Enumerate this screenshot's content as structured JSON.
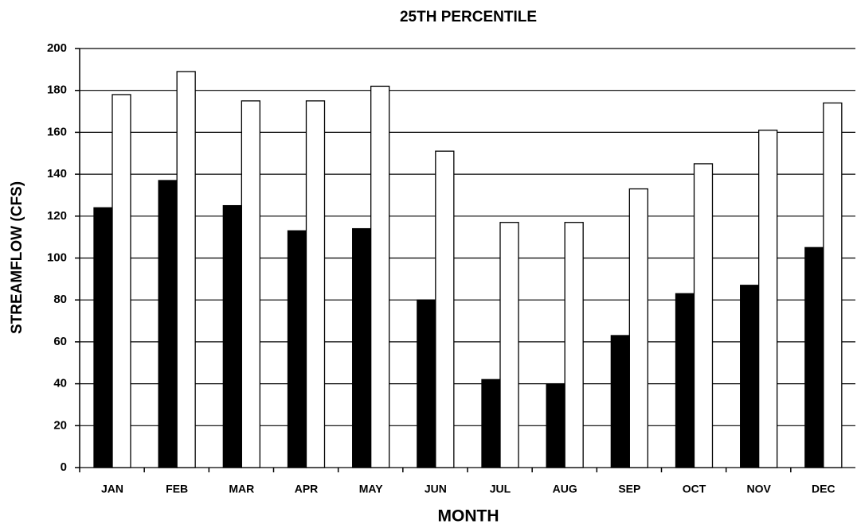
{
  "chart_data": {
    "type": "bar",
    "title": "25TH PERCENTILE",
    "x_label": "MONTH",
    "y_label": "STREAMFLOW (CFS)",
    "categories": [
      "JAN",
      "FEB",
      "MAR",
      "APR",
      "MAY",
      "JUN",
      "JUL",
      "AUG",
      "SEP",
      "OCT",
      "NOV",
      "DEC"
    ],
    "series": [
      {
        "color": "#000000",
        "values": [
          124,
          137,
          125,
          113,
          114,
          80,
          42,
          40,
          63,
          83,
          87,
          105
        ]
      },
      {
        "color": "#ffffff",
        "values": [
          178,
          189,
          175,
          175,
          182,
          151,
          117,
          117,
          133,
          145,
          161,
          174
        ]
      }
    ],
    "ylim": [
      0,
      200
    ],
    "yticks": [
      0,
      20,
      40,
      60,
      80,
      100,
      120,
      140,
      160,
      180,
      200
    ],
    "grid": true
  }
}
